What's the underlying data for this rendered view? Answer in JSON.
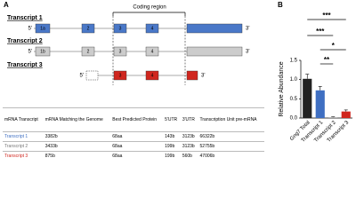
{
  "panel_a": {
    "label": "A",
    "coding_region": "Coding region",
    "five_prime": "5'",
    "three_prime": "3'",
    "transcripts": [
      {
        "label": "Transcript 1",
        "exons": [
          "1a",
          "2",
          "3",
          "4"
        ]
      },
      {
        "label": "Transcript 2",
        "exons": [
          "1b",
          "2",
          "3",
          "4"
        ]
      },
      {
        "label": "Transcript 3",
        "exons": [
          "3",
          "4"
        ]
      }
    ],
    "table": {
      "header": [
        "mRNA Transcript",
        "mRNA Matching the Genome",
        "Best Predicted Protein",
        "5'UTR",
        "3'UTR",
        "Transcription Unit pre-mRNA"
      ],
      "rows": [
        [
          "Transcript 1",
          "3382b",
          "68aa",
          "143b",
          "3123b",
          "66322b"
        ],
        [
          "Transcript 2",
          "3433b",
          "68aa",
          "199b",
          "3123b",
          "52755b"
        ],
        [
          "Transcript 3",
          "875b",
          "68aa",
          "199b",
          "560b",
          "47006b"
        ]
      ]
    }
  },
  "chart_data": {
    "type": "bar",
    "label": "B",
    "y_label": "Relative Abundance",
    "categories": [
      "Gng7 Total",
      "Transcript 1",
      "Transcript 2",
      "Transcript 3"
    ],
    "values": [
      1.02,
      0.72,
      0.02,
      0.17
    ],
    "errors": [
      0.12,
      0.1,
      0.01,
      0.04
    ],
    "colors": [
      "#222222",
      "#3f6fc2",
      "#aaaaaa",
      "#d0261e"
    ],
    "ylim": [
      0,
      1.5
    ],
    "yticks": [
      {
        "value": 0,
        "label": "0.0"
      },
      {
        "value": 0.5,
        "label": "0.5"
      },
      {
        "value": 1,
        "label": "1.0"
      },
      {
        "value": 1.5,
        "label": "1.5"
      }
    ],
    "significance": [
      "***",
      "***",
      "*",
      "**"
    ]
  }
}
